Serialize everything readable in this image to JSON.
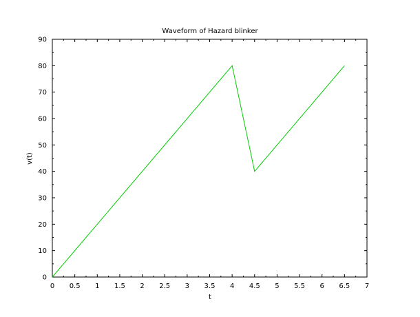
{
  "chart_data": {
    "type": "line",
    "title": "Waveform of Hazard blinker",
    "xlabel": "t",
    "ylabel": "v(t)",
    "xlim": [
      0,
      7
    ],
    "ylim": [
      0,
      90
    ],
    "x_ticks": [
      "0",
      "0.5",
      "1",
      "1.5",
      "2",
      "2.5",
      "3",
      "3.5",
      "4",
      "4.5",
      "5",
      "5.5",
      "6",
      "6.5",
      "7"
    ],
    "y_ticks": [
      "0",
      "10",
      "20",
      "30",
      "40",
      "50",
      "60",
      "70",
      "80",
      "90"
    ],
    "grid": false,
    "line_color": "#00cc00",
    "series": [
      {
        "x": [
          0,
          4,
          4.5,
          6.5
        ],
        "y": [
          0,
          80,
          40,
          80
        ]
      }
    ]
  }
}
